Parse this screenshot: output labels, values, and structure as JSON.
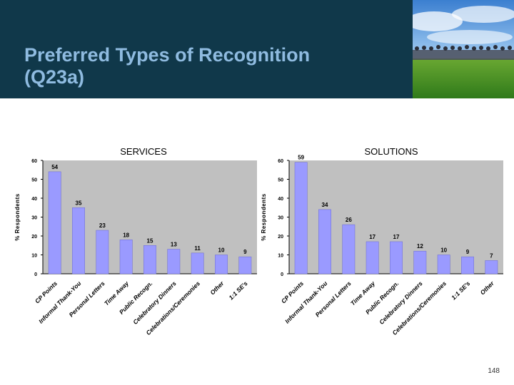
{
  "header": {
    "title_line1": "Preferred Types of Recognition",
    "title_line2": "(Q23a)",
    "header_color": "#10384a",
    "title_color": "#8fbbe0"
  },
  "page_number": "148",
  "chart_data": [
    {
      "type": "bar",
      "title": "SERVICES",
      "ylabel": "% Respondents",
      "xlabel": "",
      "ylim": [
        0,
        60
      ],
      "yticks": [
        0,
        10,
        20,
        30,
        40,
        50,
        60
      ],
      "categories": [
        "CP Points",
        "Informal Thank-You",
        "Personal Letters",
        "Time Away",
        "Public Recogn.",
        "Celebratory Dinners",
        "Celebrations/Ceremonies",
        "Other",
        "1:1 SE's"
      ],
      "values": [
        54,
        35,
        23,
        18,
        15,
        13,
        11,
        10,
        9
      ],
      "bar_color": "#9a9aff",
      "plot_bg": "#c0c0c0",
      "grid": false
    },
    {
      "type": "bar",
      "title": "SOLUTIONS",
      "ylabel": "% Respondents",
      "xlabel": "",
      "ylim": [
        0,
        60
      ],
      "yticks": [
        0,
        10,
        20,
        30,
        40,
        50,
        60
      ],
      "categories": [
        "CP Points",
        "Informal Thank-You",
        "Personal Letters",
        "Time Away",
        "Public Recogn.",
        "Celebratory Dinners",
        "Celebrations/Ceremonies",
        "1:1 SE's",
        "Other"
      ],
      "values": [
        59,
        34,
        26,
        17,
        17,
        12,
        10,
        9,
        7
      ],
      "bar_color": "#9a9aff",
      "plot_bg": "#c0c0c0",
      "grid": false
    }
  ]
}
